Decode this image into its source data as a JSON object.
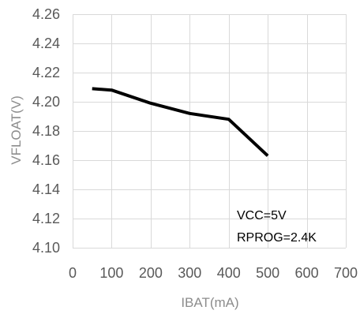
{
  "chart_data": {
    "type": "line",
    "xlabel": "IBAT(mA)",
    "ylabel": "VFLOAT(V)",
    "xlim": [
      0,
      700
    ],
    "ylim": [
      4.1,
      4.26
    ],
    "xticks": [
      0,
      100,
      200,
      300,
      400,
      500,
      600,
      700
    ],
    "yticks": [
      4.1,
      4.12,
      4.14,
      4.16,
      4.18,
      4.2,
      4.22,
      4.24,
      4.26
    ],
    "xtick_labels": [
      "0",
      "100",
      "200",
      "300",
      "400",
      "500",
      "600",
      "700"
    ],
    "ytick_labels": [
      "4.10",
      "4.12",
      "4.14",
      "4.16",
      "4.18",
      "4.20",
      "4.22",
      "4.24",
      "4.26"
    ],
    "grid": true,
    "series": [
      {
        "x": [
          50,
          100,
          200,
          300,
          400,
          500
        ],
        "y": [
          4.209,
          4.208,
          4.199,
          4.192,
          4.188,
          4.163
        ],
        "color": "#000000"
      }
    ],
    "annotations": [
      "VCC=5V",
      "RPROG=2.4K"
    ]
  }
}
